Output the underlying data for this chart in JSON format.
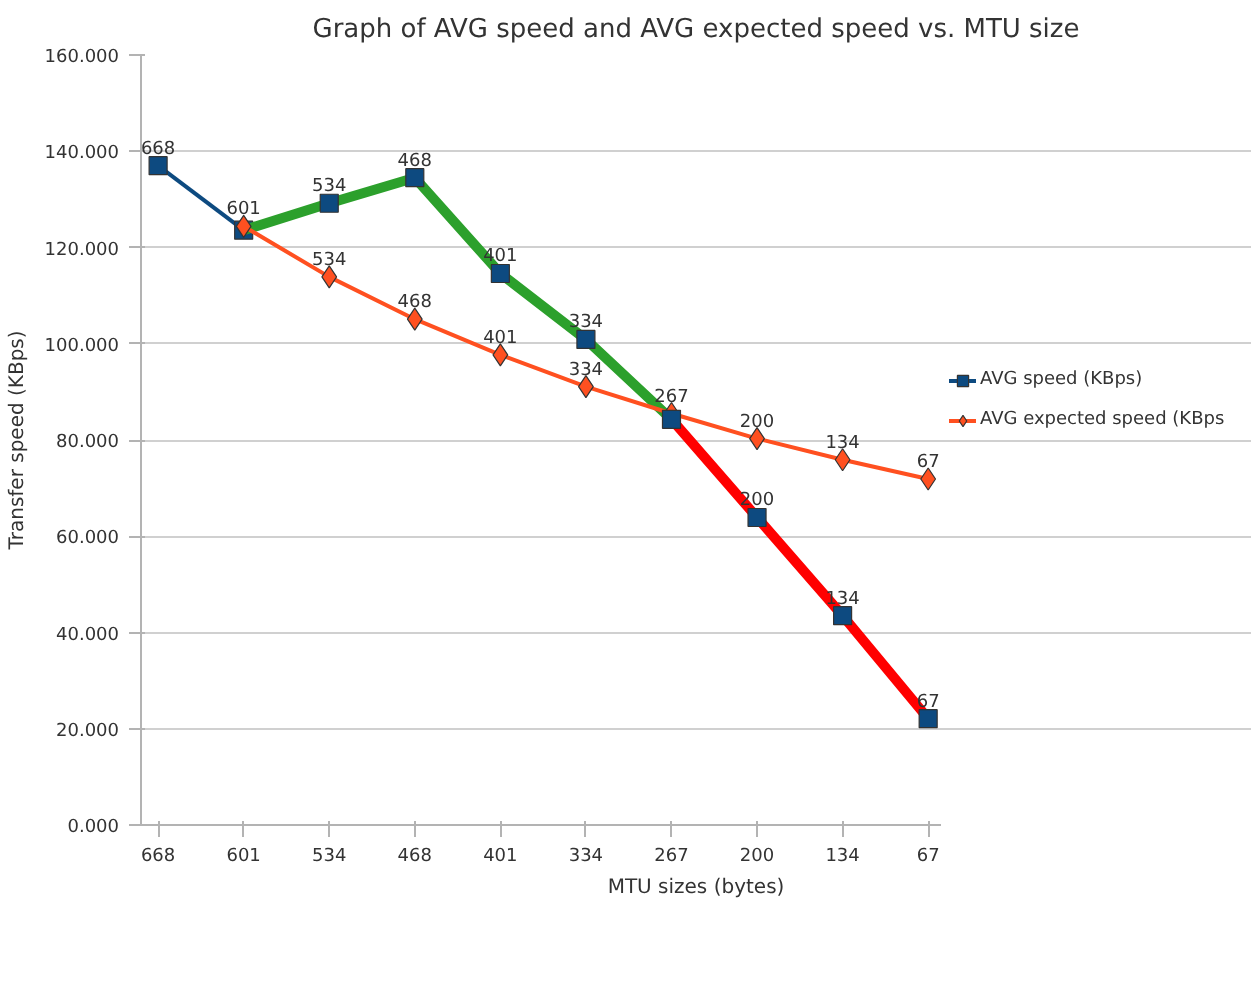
{
  "chart_data": {
    "type": "line",
    "title": "Graph of AVG speed and AVG expected speed vs. MTU size",
    "xlabel": "MTU sizes (bytes)",
    "ylabel": "Transfer speed (KBps)",
    "categories": [
      "668",
      "601",
      "534",
      "468",
      "401",
      "334",
      "267",
      "200",
      "134",
      "67"
    ],
    "series": [
      {
        "name": "AVG speed (KBps)",
        "type": "line",
        "color": "#0d4a80",
        "marker": "square",
        "values": [
          137,
          123.6,
          null,
          null,
          null,
          null,
          null,
          null,
          null,
          null
        ]
      },
      {
        "type": "line",
        "color": "#2ca02c",
        "marker": "none",
        "values": [
          null,
          123.6,
          129.2,
          134.5,
          114.6,
          100.9,
          84.3,
          null,
          null,
          null
        ]
      },
      {
        "type": "line",
        "color": "#ff0000",
        "marker": "none",
        "values": [
          null,
          null,
          null,
          null,
          null,
          null,
          84.3,
          63.9,
          43.5,
          22.1
        ]
      },
      {
        "name": "AVG expected speed (KBps",
        "type": "line",
        "color": "#ff5020",
        "marker": "diamond",
        "values": [
          null,
          124.4,
          113.9,
          105.1,
          97.7,
          91.1,
          85.5,
          80.3,
          75.9,
          71.9
        ]
      },
      {
        "type": "scatter",
        "color": "#0d4a80",
        "marker": "square",
        "values": [
          null,
          null,
          129.2,
          134.5,
          114.6,
          100.9,
          84.3,
          63.9,
          43.5,
          22.1
        ]
      }
    ],
    "annotations": [
      {
        "text": "668",
        "x": "668",
        "y": 137
      },
      {
        "text": "601",
        "x": "601",
        "y": 124.4
      },
      {
        "text": "534",
        "x": "534",
        "y": 129.2
      },
      {
        "text": "468",
        "x": "468",
        "y": 134.5
      },
      {
        "text": "401",
        "x": "401",
        "y": 114.6
      },
      {
        "text": "334",
        "x": "334",
        "y": 100.9
      },
      {
        "text": "534",
        "x": "534",
        "y": 113.9
      },
      {
        "text": "468",
        "x": "468",
        "y": 105.1
      },
      {
        "text": "401",
        "x": "401",
        "y": 97.7
      },
      {
        "text": "334",
        "x": "334",
        "y": 91.1
      },
      {
        "text": "267",
        "x": "267",
        "y": 85.5
      },
      {
        "text": "200",
        "x": "200",
        "y": 80.3
      },
      {
        "text": "134",
        "x": "134",
        "y": 75.9
      },
      {
        "text": "67",
        "x": "67",
        "y": 71.9
      },
      {
        "text": "200",
        "x": "200",
        "y": 63.9
      },
      {
        "text": "134",
        "x": "134",
        "y": 43.5
      },
      {
        "text": "67",
        "x": "67",
        "y": 22.1
      }
    ],
    "ylim": [
      0,
      160
    ],
    "yticks": [
      {
        "value": 0,
        "label": "0.000"
      },
      {
        "value": 20,
        "label": "20.000"
      },
      {
        "value": 40,
        "label": "40.000"
      },
      {
        "value": 60,
        "label": "60.000"
      },
      {
        "value": 80,
        "label": "80.000"
      },
      {
        "value": 100,
        "label": "100.000"
      },
      {
        "value": 120,
        "label": "120.000"
      },
      {
        "value": 140,
        "label": "140.000"
      },
      {
        "value": 160,
        "label": "160.000"
      }
    ],
    "grid": "y",
    "legend": "right"
  }
}
